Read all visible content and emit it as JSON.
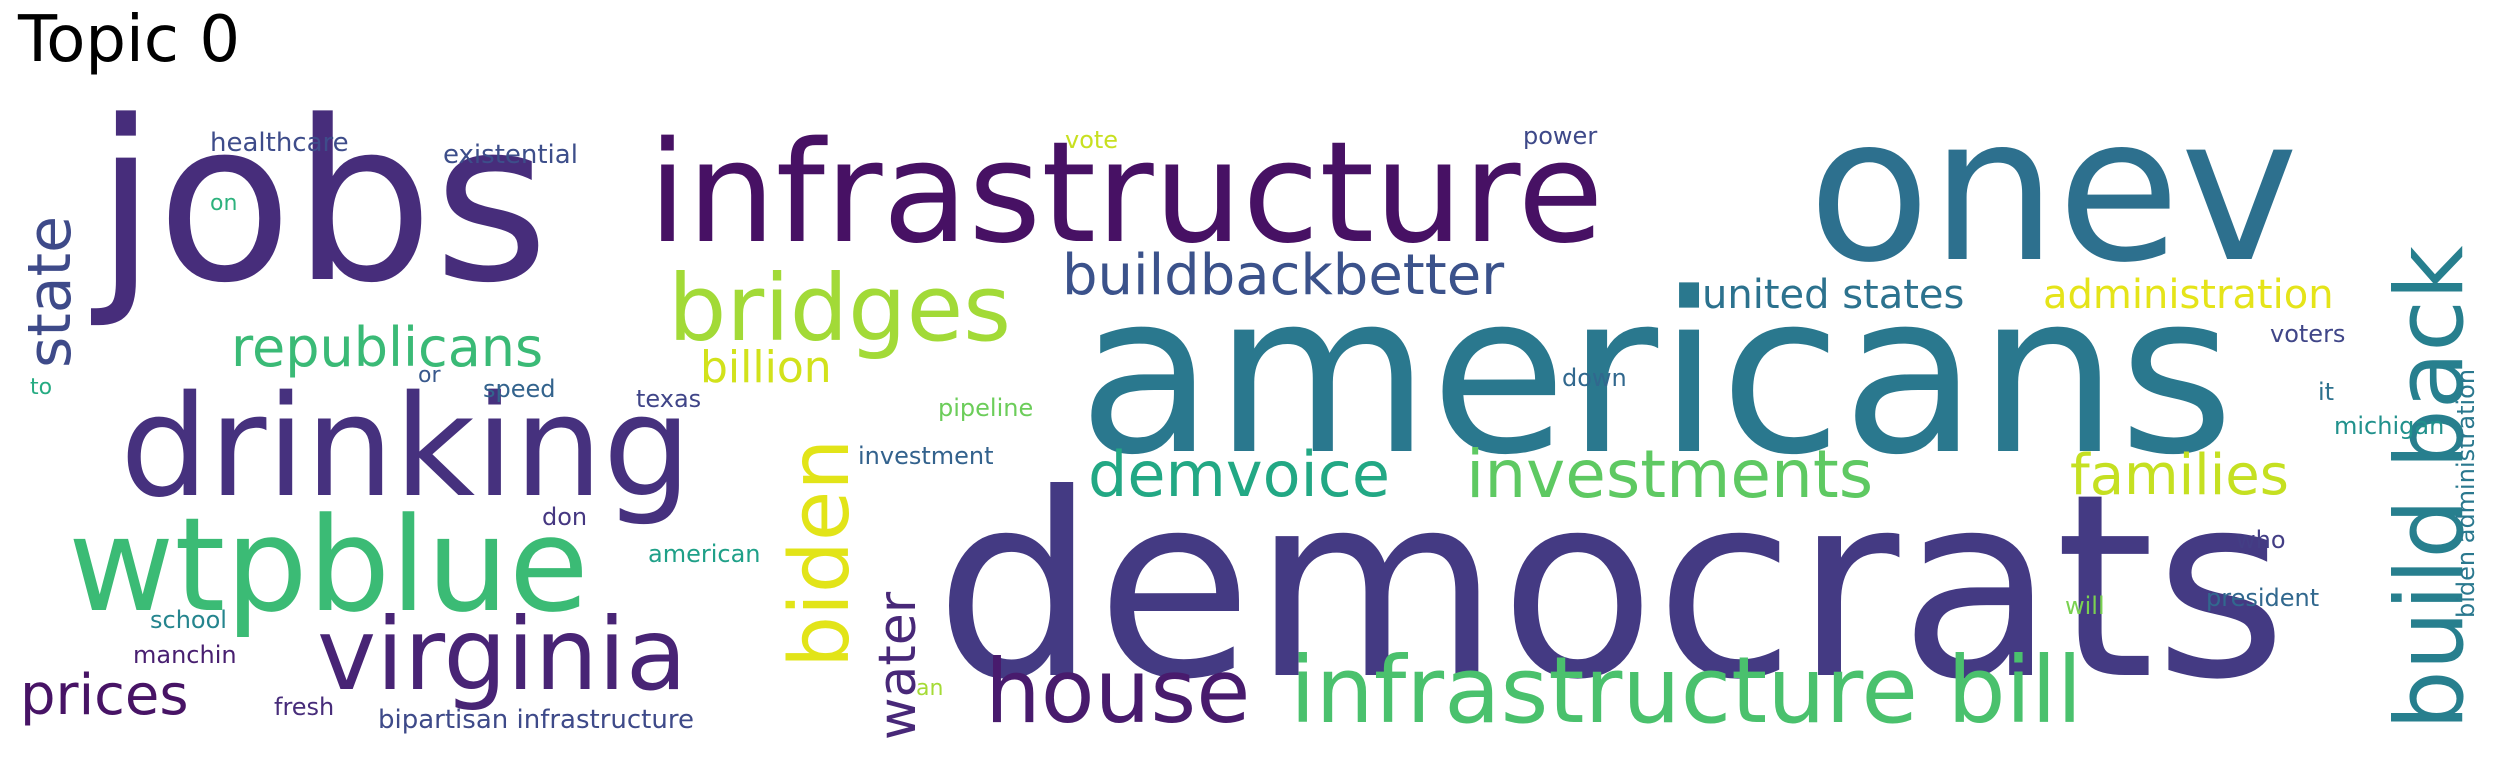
{
  "title": "Topic 0",
  "words": {
    "jobs": {
      "text": "jobs",
      "color": "#472d7b"
    },
    "infrastructure": {
      "text": "infrastructure",
      "color": "#471164"
    },
    "onev": {
      "text": "onev",
      "color": "#2d708e"
    },
    "americans": {
      "text": "americans",
      "color": "#2a788e"
    },
    "democrats": {
      "text": "democrats",
      "color": "#443a83"
    },
    "drinking": {
      "text": "drinking",
      "color": "#46317e"
    },
    "wtpblue": {
      "text": "wtpblue",
      "color": "#3bbb75"
    },
    "virginia": {
      "text": "virginia",
      "color": "#482475"
    },
    "house": {
      "text": "house",
      "color": "#481b6d"
    },
    "infrastructure_bill": {
      "text": "infrastructure bill",
      "color": "#4ac16d"
    },
    "bridges": {
      "text": "bridges",
      "color": "#a2da37"
    },
    "buildbackbetter": {
      "text": "buildbackbetter",
      "color": "#3b528b"
    },
    "build_back": {
      "text": "build back",
      "color": "#277f8e"
    },
    "republicans": {
      "text": "republicans",
      "color": "#3aba76"
    },
    "state": {
      "text": "state",
      "color": "#3e4a89"
    },
    "biden": {
      "text": "biden",
      "color": "#e2e418"
    },
    "water": {
      "text": "water",
      "color": "#482878"
    },
    "demvoice": {
      "text": "demvoice",
      "color": "#22a884"
    },
    "investments": {
      "text": "investments",
      "color": "#5ec962"
    },
    "families": {
      "text": "families",
      "color": "#c5e021"
    },
    "united_states": {
      "text": "united states",
      "color": "#2c728e"
    },
    "administration": {
      "text": "administration",
      "color": "#e5e419"
    },
    "prices": {
      "text": "prices",
      "color": "#471365"
    },
    "billion": {
      "text": "billion",
      "color": "#d2e21b"
    },
    "healthcare": {
      "text": "healthcare",
      "color": "#3e4c8a"
    },
    "existential": {
      "text": "existential",
      "color": "#3d4e8a"
    },
    "vote": {
      "text": "vote",
      "color": "#c8e020"
    },
    "power": {
      "text": "power",
      "color": "#3e4989"
    },
    "on": {
      "text": "on",
      "color": "#2db27d"
    },
    "or": {
      "text": "or",
      "color": "#38588c"
    },
    "speed": {
      "text": "speed",
      "color": "#33638d"
    },
    "to": {
      "text": "to",
      "color": "#25ab82"
    },
    "texas": {
      "text": "texas",
      "color": "#404588"
    },
    "pipeline": {
      "text": "pipeline",
      "color": "#6ccd5a"
    },
    "investment": {
      "text": "investment",
      "color": "#33628d"
    },
    "down": {
      "text": "down",
      "color": "#31688e"
    },
    "voters": {
      "text": "voters",
      "color": "#404688"
    },
    "it": {
      "text": "it",
      "color": "#2d718e"
    },
    "michigan": {
      "text": "michigan",
      "color": "#21918c"
    },
    "don": {
      "text": "don",
      "color": "#453781"
    },
    "american": {
      "text": "american",
      "color": "#1fa088"
    },
    "school": {
      "text": "school",
      "color": "#25858e"
    },
    "manchin": {
      "text": "manchin",
      "color": "#481f70"
    },
    "fresh": {
      "text": "fresh",
      "color": "#472c7a"
    },
    "bipartisan_infrastructure": {
      "text": "bipartisan infrastructure",
      "color": "#3e4a89"
    },
    "an": {
      "text": "an",
      "color": "#a5db36"
    },
    "who": {
      "text": "who",
      "color": "#433e85"
    },
    "will": {
      "text": "will",
      "color": "#7ad151"
    },
    "president": {
      "text": "president",
      "color": "#31688e"
    },
    "biden_administration": {
      "text": "biden administration",
      "color": "#2a788e"
    }
  }
}
